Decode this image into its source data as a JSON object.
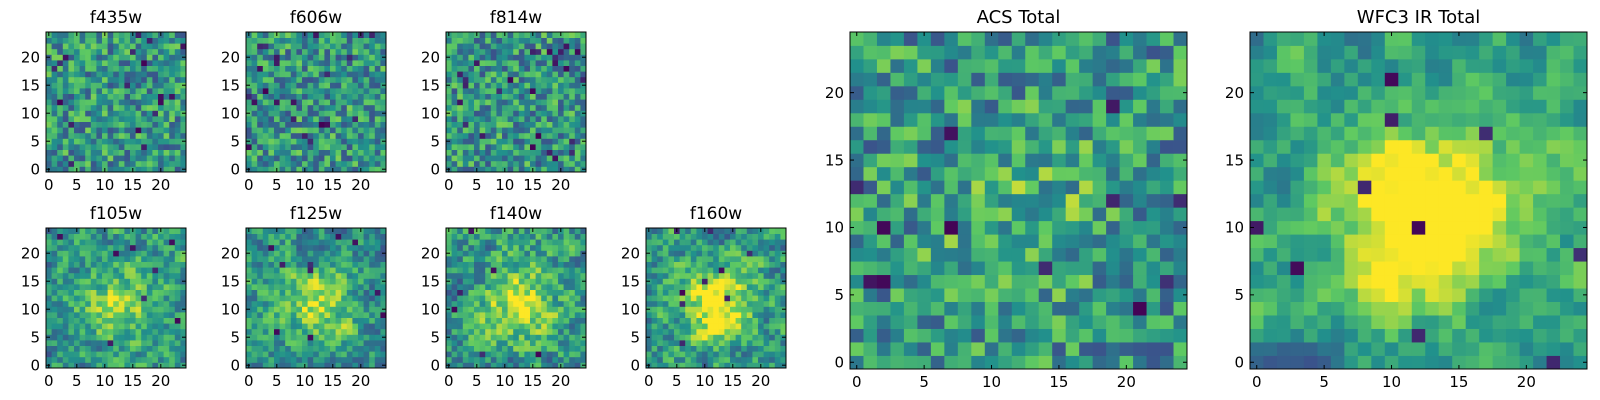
{
  "figure_type": "image-grid of pixel heatmaps",
  "colormap": [
    "#440154",
    "#3b528b",
    "#21918c",
    "#5ec962",
    "#fde725"
  ],
  "chart_data": [
    {
      "type": "heatmap",
      "title": "f435w",
      "grid": [
        25,
        25
      ],
      "xlim": [
        0,
        24
      ],
      "ylim": [
        0,
        24
      ],
      "xticks": [
        0,
        5,
        10,
        15,
        20
      ],
      "yticks": [
        0,
        5,
        10,
        15,
        20
      ],
      "seed": 11,
      "blob_strength": 0.0,
      "smooth": 0,
      "dark_spots": 18
    },
    {
      "type": "heatmap",
      "title": "f606w",
      "grid": [
        25,
        25
      ],
      "xlim": [
        0,
        24
      ],
      "ylim": [
        0,
        24
      ],
      "xticks": [
        0,
        5,
        10,
        15,
        20
      ],
      "yticks": [
        0,
        5,
        10,
        15,
        20
      ],
      "seed": 23,
      "blob_strength": 0.0,
      "smooth": 0,
      "dark_spots": 22
    },
    {
      "type": "heatmap",
      "title": "f814w",
      "grid": [
        25,
        25
      ],
      "xlim": [
        0,
        24
      ],
      "ylim": [
        0,
        24
      ],
      "xticks": [
        0,
        5,
        10,
        15,
        20
      ],
      "yticks": [
        0,
        5,
        10,
        15,
        20
      ],
      "seed": 37,
      "blob_strength": 0.0,
      "smooth": 0,
      "dark_spots": 26
    },
    {
      "type": "heatmap",
      "title": "f105w",
      "grid": [
        25,
        25
      ],
      "xlim": [
        0,
        24
      ],
      "ylim": [
        0,
        24
      ],
      "xticks": [
        0,
        5,
        10,
        15,
        20
      ],
      "yticks": [
        0,
        5,
        10,
        15,
        20
      ],
      "seed": 41,
      "blob_strength": 0.35,
      "smooth": 1,
      "dark_spots": 8
    },
    {
      "type": "heatmap",
      "title": "f125w",
      "grid": [
        25,
        25
      ],
      "xlim": [
        0,
        24
      ],
      "ylim": [
        0,
        24
      ],
      "xticks": [
        0,
        5,
        10,
        15,
        20
      ],
      "yticks": [
        0,
        5,
        10,
        15,
        20
      ],
      "seed": 53,
      "blob_strength": 0.35,
      "smooth": 1,
      "dark_spots": 10
    },
    {
      "type": "heatmap",
      "title": "f140w",
      "grid": [
        25,
        25
      ],
      "xlim": [
        0,
        24
      ],
      "ylim": [
        0,
        24
      ],
      "xticks": [
        0,
        5,
        10,
        15,
        20
      ],
      "yticks": [
        0,
        5,
        10,
        15,
        20
      ],
      "seed": 67,
      "blob_strength": 0.4,
      "smooth": 1,
      "dark_spots": 6
    },
    {
      "type": "heatmap",
      "title": "f160w",
      "grid": [
        25,
        25
      ],
      "xlim": [
        0,
        24
      ],
      "ylim": [
        0,
        24
      ],
      "xticks": [
        0,
        5,
        10,
        15,
        20
      ],
      "yticks": [
        0,
        5,
        10,
        15,
        20
      ],
      "seed": 71,
      "blob_strength": 0.55,
      "smooth": 1,
      "dark_spots": 9
    },
    {
      "type": "heatmap",
      "title": "ACS Total",
      "grid": [
        25,
        25
      ],
      "xlim": [
        0,
        24
      ],
      "ylim": [
        0,
        24
      ],
      "xticks": [
        0,
        5,
        10,
        15,
        20
      ],
      "yticks": [
        0,
        5,
        10,
        15,
        20
      ],
      "seed": 83,
      "blob_strength": 0.15,
      "smooth": 0,
      "dark_spots": 12
    },
    {
      "type": "heatmap",
      "title": "WFC3 IR Total",
      "grid": [
        25,
        25
      ],
      "xlim": [
        0,
        24
      ],
      "ylim": [
        0,
        24
      ],
      "xticks": [
        0,
        5,
        10,
        15,
        20
      ],
      "yticks": [
        0,
        5,
        10,
        15,
        20
      ],
      "seed": 97,
      "blob_strength": 0.6,
      "smooth": 2,
      "dark_spots": 10
    }
  ]
}
